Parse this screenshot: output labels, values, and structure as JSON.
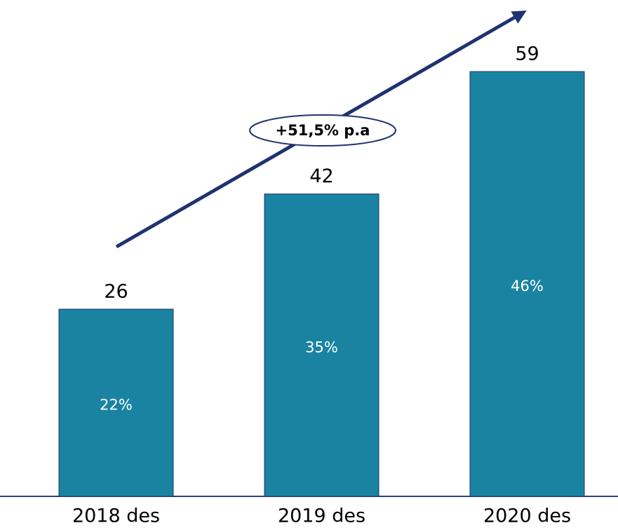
{
  "chart_data": {
    "type": "bar",
    "categories": [
      "2018 des",
      "2019 des",
      "2020 des"
    ],
    "values": [
      26,
      42,
      59
    ],
    "inner_labels": [
      "22%",
      "35%",
      "46%"
    ],
    "annotation": "+51,5% p.a",
    "color": "#1a83a1"
  }
}
